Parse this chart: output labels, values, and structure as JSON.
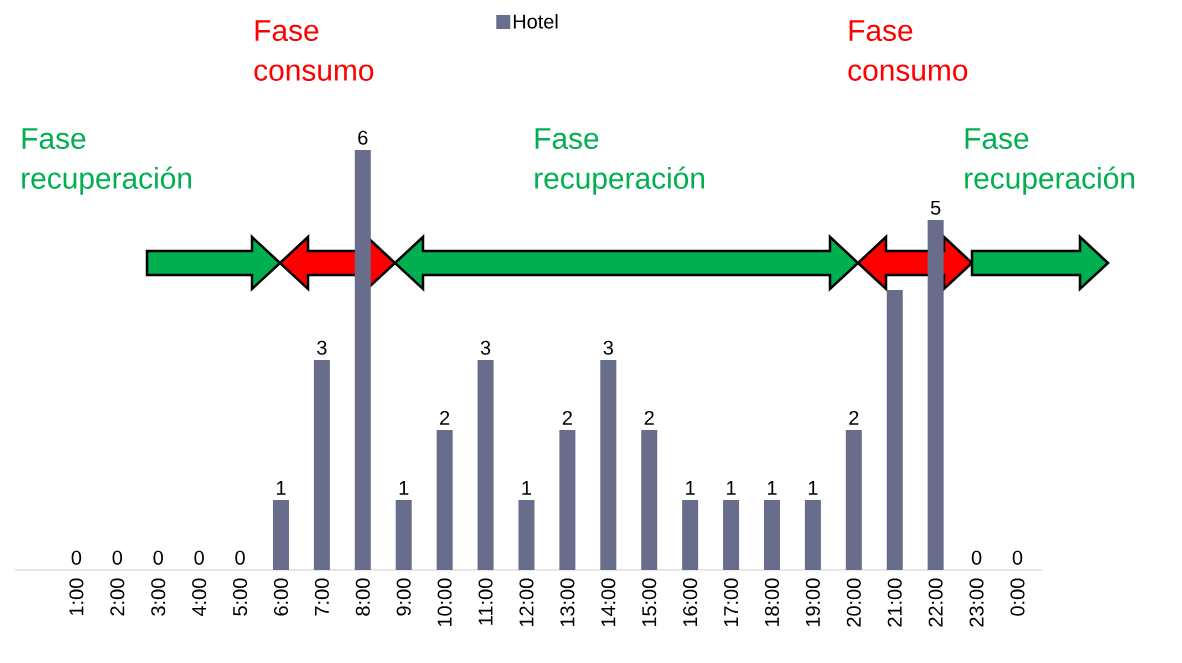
{
  "chart_data": {
    "type": "bar",
    "categories": [
      "1:00",
      "2:00",
      "3:00",
      "4:00",
      "5:00",
      "6:00",
      "7:00",
      "8:00",
      "9:00",
      "10:00",
      "11:00",
      "12:00",
      "13:00",
      "14:00",
      "15:00",
      "16:00",
      "17:00",
      "18:00",
      "19:00",
      "20:00",
      "21:00",
      "22:00",
      "23:00",
      "0:00"
    ],
    "series": [
      {
        "name": "Hotel",
        "color": "#676d8a",
        "values": [
          0,
          0,
          0,
          0,
          0,
          1,
          3,
          6,
          1,
          2,
          3,
          1,
          2,
          3,
          2,
          1,
          1,
          1,
          1,
          2,
          4,
          5,
          0,
          0
        ],
        "value_labels": [
          "0",
          "0",
          "0",
          "0",
          "0",
          "1",
          "3",
          "6",
          "1",
          "2",
          "3",
          "1",
          "2",
          "3",
          "2",
          "1",
          "1",
          "1",
          "1",
          "2",
          null,
          "5",
          "0",
          "0"
        ]
      }
    ],
    "annotations": [
      "Fase recuperación",
      "Fase consumo",
      "Fase recuperación",
      "Fase consumo",
      "Fase recuperación"
    ],
    "legend": "top"
  }
}
